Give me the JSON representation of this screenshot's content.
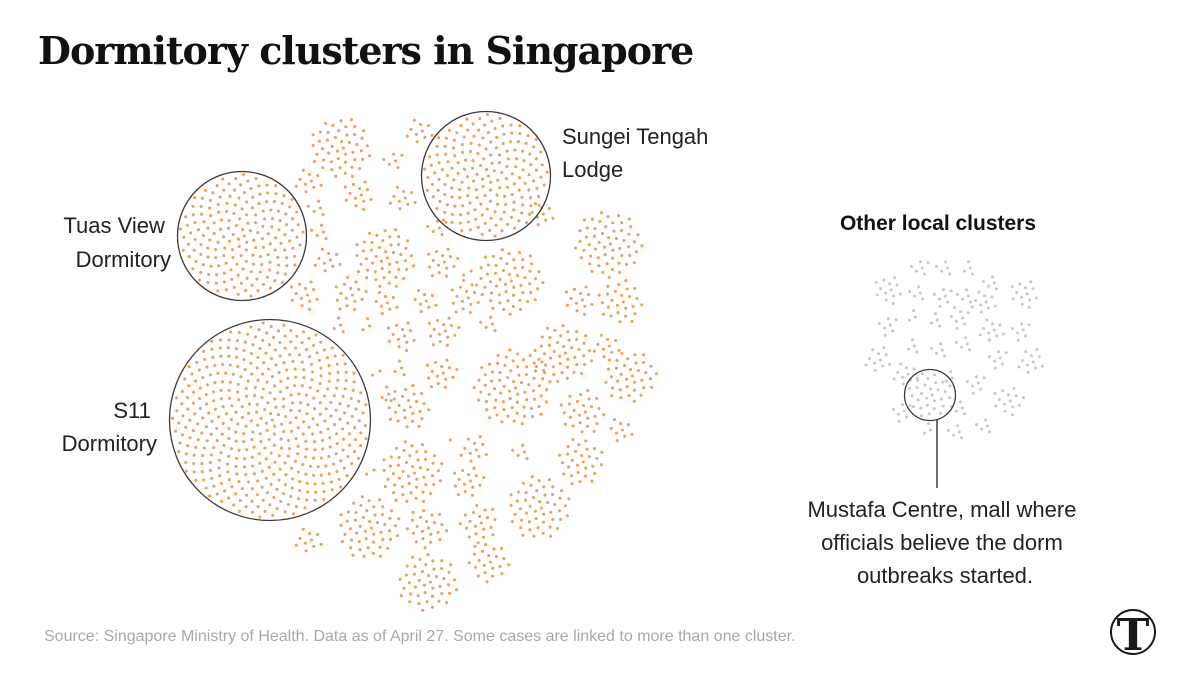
{
  "title": "Dormitory clusters in Singapore",
  "source": "Source: Singapore Ministry of Health. Data as of April 27. Some cases are linked to more than one cluster.",
  "colors": {
    "dorm": "#f0a05c",
    "other": "#c8c8c8",
    "outline": "#3a3a3a",
    "text": "#222222",
    "muted": "#a8a8a8"
  },
  "chart_data": {
    "type": "packed-bubble",
    "unit": "cases (each dot represents one case)",
    "groups": [
      {
        "name": "Dormitory clusters",
        "color": "#f0a05c",
        "labeled_clusters": [
          {
            "id": "s11",
            "lines": [
              "S11",
              "Dormitory"
            ],
            "approx_cases": 1600
          },
          {
            "id": "tuas",
            "lines": [
              "Tuas View",
              "Dormitory"
            ],
            "approx_cases": 640
          },
          {
            "id": "sungei",
            "lines": [
              "Sungei Tengah",
              "Lodge"
            ],
            "approx_cases": 640
          }
        ]
      },
      {
        "name": "Other local clusters",
        "color": "#c8c8c8",
        "heading": "Other local clusters",
        "labeled_clusters": [
          {
            "id": "mustafa",
            "lines": [
              "Mustafa Centre, mall where",
              "officials believe the dorm",
              "outbreaks started."
            ],
            "approx_cases": 90
          }
        ]
      }
    ]
  },
  "icons": {
    "logo": "nyt-t-logo-icon"
  }
}
